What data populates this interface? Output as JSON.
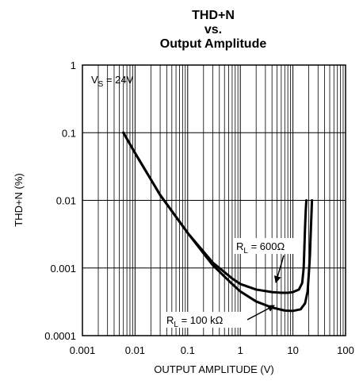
{
  "chart_data": {
    "type": "line",
    "title": [
      "THD+N",
      "vs.",
      "Output Amplitude"
    ],
    "xlabel": "OUTPUT AMPLITUDE (V)",
    "ylabel": "THD+N (%)",
    "x_scale": "log",
    "y_scale": "log",
    "xlim": [
      0.001,
      100
    ],
    "ylim": [
      0.0001,
      1
    ],
    "grid": true,
    "x_ticks": [
      "0.001",
      "0.01",
      "0.1",
      "1",
      "10",
      "100"
    ],
    "y_ticks": [
      "1",
      "0.1",
      "0.01",
      "0.001",
      "0.0001"
    ],
    "condition": {
      "main": "V",
      "sub": "S",
      "rest": " = 24V"
    },
    "series": [
      {
        "label": {
          "main": "R",
          "sub": "L",
          "rest": " = 600Ω"
        },
        "x": [
          0.006,
          0.01,
          0.03,
          0.1,
          0.3,
          0.7,
          1,
          2,
          4,
          6,
          8,
          10,
          13,
          15,
          16,
          16.5,
          17,
          17.5,
          18
        ],
        "y": [
          0.1,
          0.05,
          0.012,
          0.0033,
          0.0012,
          0.0007,
          0.00058,
          0.00048,
          0.00044,
          0.00043,
          0.00043,
          0.00044,
          0.00048,
          0.0006,
          0.001,
          0.002,
          0.004,
          0.007,
          0.01
        ]
      },
      {
        "label": {
          "main": "R",
          "sub": "L",
          "rest": " = 100 kΩ"
        },
        "x": [
          0.006,
          0.01,
          0.03,
          0.1,
          0.3,
          0.7,
          1,
          2,
          4,
          7,
          10,
          14,
          17,
          19,
          20,
          21,
          22,
          23
        ],
        "y": [
          0.1,
          0.05,
          0.012,
          0.0033,
          0.0011,
          0.00058,
          0.00045,
          0.00032,
          0.00026,
          0.000235,
          0.000232,
          0.000245,
          0.0003,
          0.00045,
          0.0008,
          0.0015,
          0.004,
          0.01
        ]
      }
    ]
  }
}
